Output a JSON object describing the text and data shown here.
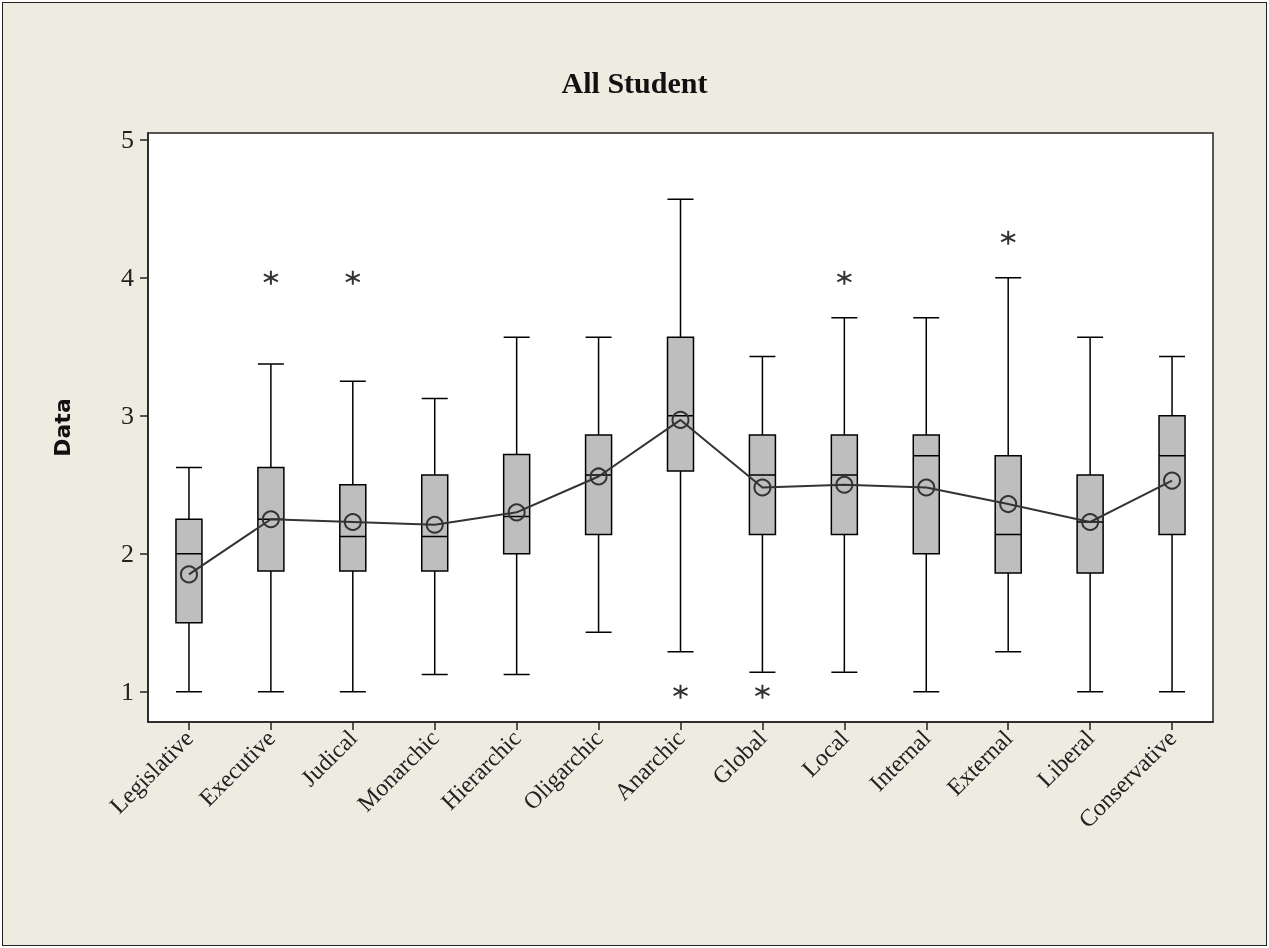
{
  "chart_data": {
    "type": "box",
    "title": "All Student",
    "ylabel": "Data",
    "categories": [
      "Legislative",
      "Executive",
      "Judical",
      "Monarchic",
      "Hierarchic",
      "Oligarchic",
      "Anarchic",
      "Global",
      "Local",
      "Internal",
      "External",
      "Liberal",
      "Conservative"
    ],
    "ylim": [
      0.78,
      5.05
    ],
    "yticks": [
      1,
      2,
      3,
      4,
      5
    ],
    "grid": false,
    "series": [
      {
        "color": "#bebebe",
        "boxes": [
          {
            "low": 1,
            "q1": 1.5,
            "median": 2,
            "q3": 2.25,
            "high": 2.625
          },
          {
            "low": 1,
            "q1": 1.875,
            "median": 2.25,
            "q3": 2.625,
            "high": 3.375,
            "outliers": [
              4
            ]
          },
          {
            "low": 1,
            "q1": 1.875,
            "median": 2.125,
            "q3": 2.5,
            "high": 3.25,
            "outliers": [
              4
            ]
          },
          {
            "low": 1.125,
            "q1": 1.875,
            "median": 2.125,
            "q3": 2.57,
            "high": 3.125
          },
          {
            "low": 1.125,
            "q1": 2,
            "median": 2.27,
            "q3": 2.72,
            "high": 3.57
          },
          {
            "low": 1.43,
            "q1": 2.14,
            "median": 2.57,
            "q3": 2.86,
            "high": 3.57
          },
          {
            "low": 1.29,
            "q1": 2.6,
            "median": 3,
            "q3": 3.57,
            "high": 4.57,
            "outliers": [
              1
            ]
          },
          {
            "low": 1.14,
            "q1": 2.14,
            "median": 2.57,
            "q3": 2.86,
            "high": 3.43,
            "outliers": [
              1
            ]
          },
          {
            "low": 1.14,
            "q1": 2.14,
            "median": 2.57,
            "q3": 2.86,
            "high": 3.71,
            "outliers": [
              4
            ]
          },
          {
            "low": 1,
            "q1": 2,
            "median": 2.71,
            "q3": 2.86,
            "high": 3.71
          },
          {
            "low": 1.29,
            "q1": 1.86,
            "median": 2.14,
            "q3": 2.71,
            "high": 4,
            "outliers": [
              4.29
            ]
          },
          {
            "low": 1,
            "q1": 1.86,
            "median": 2.23,
            "q3": 2.57,
            "high": 3.57
          },
          {
            "low": 1,
            "q1": 2.14,
            "median": 2.71,
            "q3": 3,
            "high": 3.43
          }
        ]
      },
      {
        "type": "line",
        "color": "#333333",
        "marker": "circle",
        "line_style": "solid",
        "values": [
          1.85,
          2.25,
          2.23,
          2.21,
          2.3,
          2.56,
          2.97,
          2.48,
          2.5,
          2.48,
          2.36,
          2.23,
          2.53
        ]
      }
    ]
  }
}
